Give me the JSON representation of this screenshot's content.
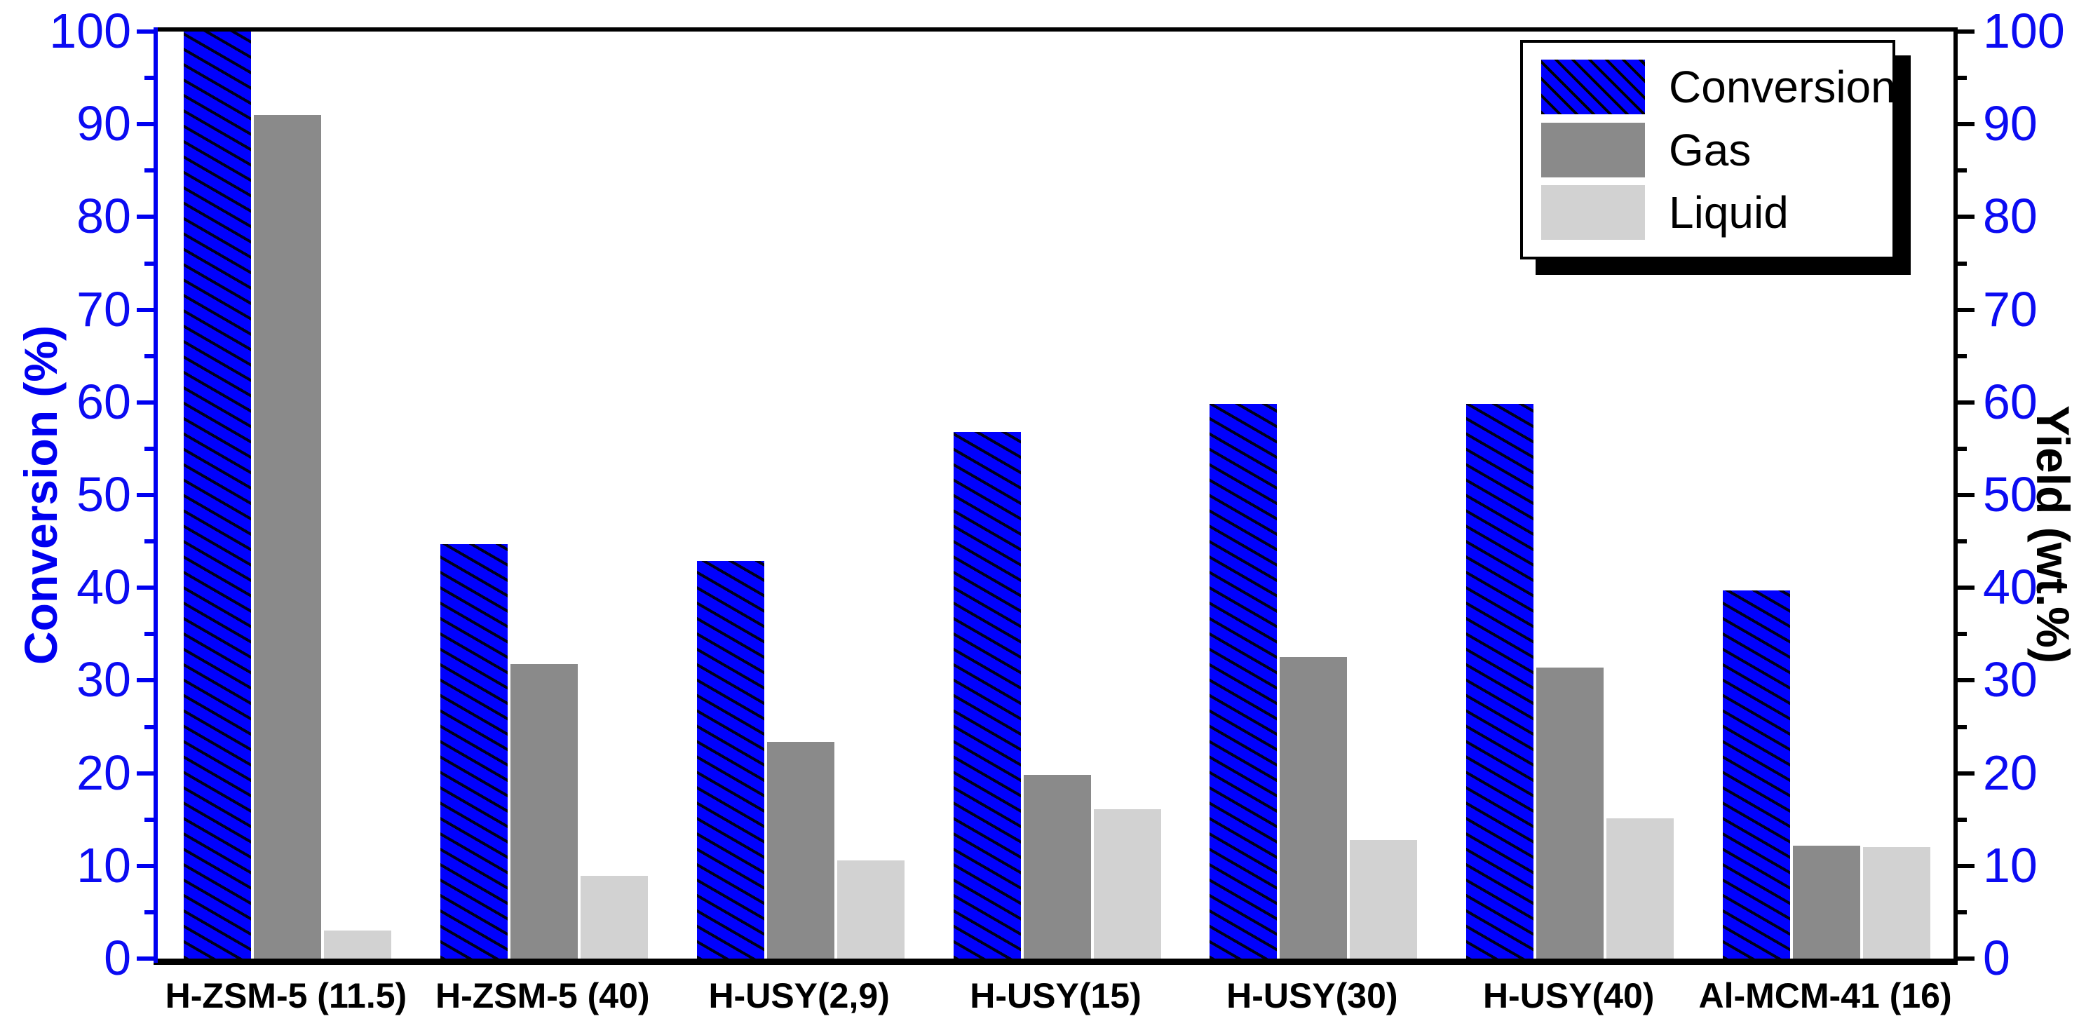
{
  "chart_data": {
    "type": "bar",
    "title": "",
    "categories": [
      "H-ZSM-5 (11.5)",
      "H-ZSM-5 (40)",
      "H-USY(2,9)",
      "H-USY(15)",
      "H-USY(30)",
      "H-USY(40)",
      "Al-MCM-41 (16)"
    ],
    "series": [
      {
        "name": "Conversion",
        "axis": "left",
        "fill": "#0101fd",
        "pattern": "black-diagonal-hatch",
        "values": [
          100,
          44.7,
          42.9,
          56.8,
          59.8,
          59.8,
          39.7
        ]
      },
      {
        "name": "Gas",
        "axis": "right",
        "fill": "#8a8a8a",
        "pattern": "solid",
        "values": [
          91.0,
          31.8,
          23.4,
          19.8,
          32.5,
          31.4,
          12.2
        ]
      },
      {
        "name": "Liquid",
        "axis": "right",
        "fill": "#d2d2d2",
        "pattern": "solid",
        "values": [
          3.0,
          8.9,
          10.6,
          16.1,
          12.8,
          15.1,
          12.0
        ]
      }
    ],
    "left_axis": {
      "label": "Conversion (%)",
      "color": "#0000f0",
      "min": 0,
      "max": 100,
      "major_tick": 10,
      "minor_tick": 5,
      "tick_labels": [
        "0",
        "10",
        "20",
        "30",
        "40",
        "50",
        "60",
        "70",
        "80",
        "90",
        "100"
      ]
    },
    "right_axis": {
      "label": "Yield (wt.%)",
      "line_color": "#000000",
      "tick_label_color": "#0b0bf2",
      "min": 0,
      "max": 100,
      "major_tick": 10,
      "minor_tick": 5,
      "tick_labels": [
        "0",
        "10",
        "20",
        "30",
        "40",
        "50",
        "60",
        "70",
        "80",
        "90",
        "100"
      ]
    },
    "legend": {
      "position": "top-right",
      "entries": [
        "Conversion",
        "Gas",
        "Liquid"
      ]
    },
    "grid": "off",
    "plot_background": "#ffffff"
  }
}
